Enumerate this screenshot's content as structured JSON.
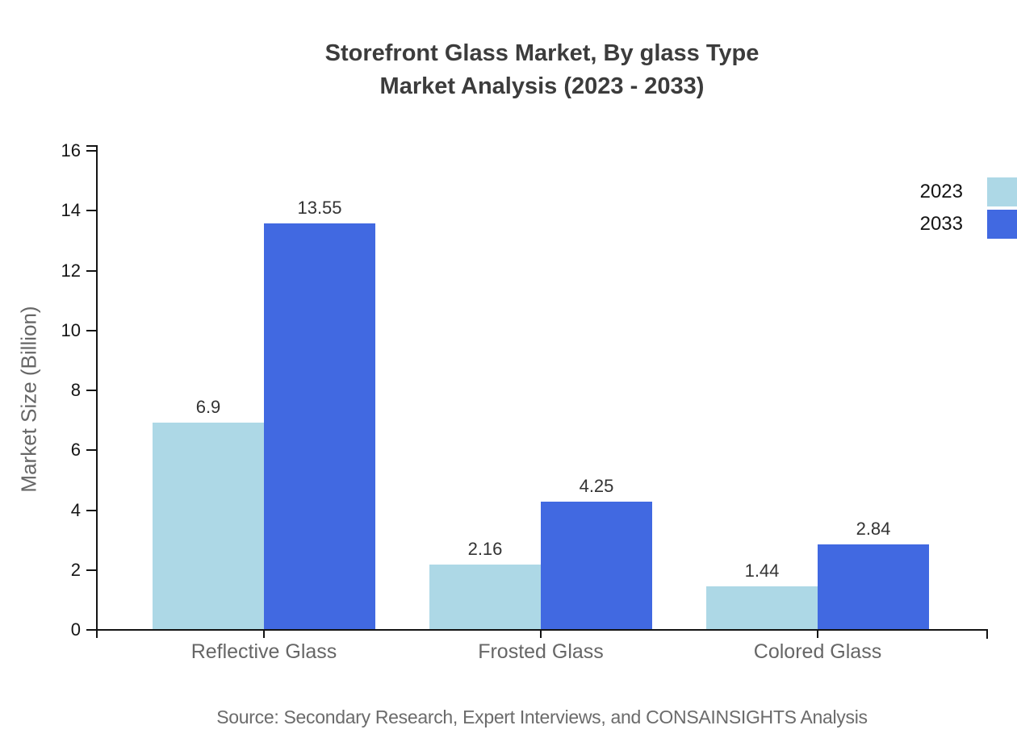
{
  "chart": {
    "title_line1": "Storefront Glass Market, By glass Type",
    "title_line2": "Market Analysis (2023 - 2033)",
    "y_axis_label": "Market Size (Billion)",
    "source_note": "Source: Secondary Research, Expert Interviews, and CONSAINSIGHTS Analysis"
  },
  "colors": {
    "series_2023": "#ADD8E6",
    "series_2033": "#4169E1",
    "axis": "#141414",
    "title_text": "#3C3C3C",
    "category_text": "#666666",
    "source_text": "#6B6B6B"
  },
  "chart_data": {
    "type": "bar",
    "title": "Storefront Glass Market, By glass Type Market Analysis (2023 - 2033)",
    "categories": [
      "Reflective Glass",
      "Frosted Glass",
      "Colored Glass"
    ],
    "series": [
      {
        "name": "2023",
        "color": "#ADD8E6",
        "values": [
          6.9,
          2.16,
          1.44
        ]
      },
      {
        "name": "2033",
        "color": "#4169E1",
        "values": [
          13.55,
          4.25,
          2.84
        ]
      }
    ],
    "xlabel": "",
    "ylabel": "Market Size (Billion)",
    "ylim": [
      0,
      16
    ],
    "ytick_step": 2,
    "grid": false,
    "legend_position": "top-right",
    "value_labels_shown": true
  }
}
